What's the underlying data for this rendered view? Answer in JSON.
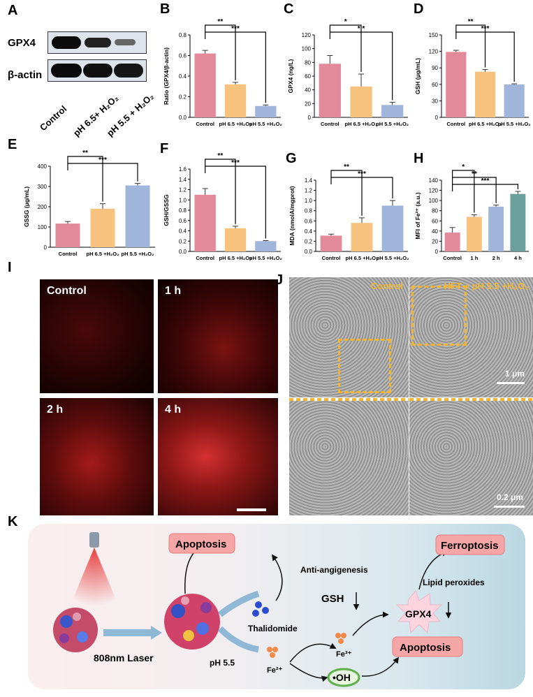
{
  "panel_labels": {
    "A": "A",
    "B": "B",
    "C": "C",
    "D": "D",
    "E": "E",
    "F": "F",
    "G": "G",
    "H": "H",
    "I": "I",
    "J": "J",
    "K": "K"
  },
  "panelA": {
    "bands": [
      "GPX4",
      "β-actin"
    ],
    "lanes": [
      "Control",
      "pH 6.5+ H₂O₂",
      "pH 5.5 + H₂O₂"
    ]
  },
  "chart_data": [
    {
      "id": "B",
      "type": "bar",
      "ylabel": "Ratio (GPX4/β-actin)",
      "categories": [
        "Control",
        "pH 6.5 +H₂O₂",
        "pH 5.5 +H₂O₂"
      ],
      "values": [
        0.62,
        0.32,
        0.11
      ],
      "errors": [
        0.03,
        0.02,
        0.01
      ],
      "ylim": [
        0,
        0.8
      ],
      "yticks": [
        "0.0",
        "0.2",
        "0.4",
        "0.6",
        "0.8"
      ],
      "sig": [
        "**",
        "***"
      ]
    },
    {
      "id": "C",
      "type": "bar",
      "ylabel": "GPX4 (ng/L)",
      "categories": [
        "Control",
        "pH 6.5 +H₂O₂",
        "pH 5.5 +H₂O₂"
      ],
      "values": [
        78,
        45,
        18
      ],
      "errors": [
        12,
        18,
        4
      ],
      "ylim": [
        0,
        120
      ],
      "yticks": [
        "0",
        "20",
        "40",
        "60",
        "80",
        "100",
        "120"
      ],
      "sig": [
        "*",
        "* *"
      ]
    },
    {
      "id": "D",
      "type": "bar",
      "ylabel": "GSH (μg/mL)",
      "categories": [
        "Control",
        "pH 6.5 +H₂O₂",
        "pH 5.5 +H₂O₂"
      ],
      "values": [
        119,
        83,
        60
      ],
      "errors": [
        3,
        4,
        1
      ],
      "ylim": [
        0,
        150
      ],
      "yticks": [
        "0",
        "30",
        "60",
        "90",
        "120",
        "150"
      ],
      "sig": [
        "**",
        "***"
      ]
    },
    {
      "id": "E",
      "type": "bar",
      "ylabel": "GSSG (μg/mL)",
      "categories": [
        "Control",
        "pH 6.5 +H₂O₂",
        "pH 5.5 +H₂O₂"
      ],
      "values": [
        117,
        190,
        305
      ],
      "errors": [
        10,
        25,
        10
      ],
      "ylim": [
        0,
        400
      ],
      "yticks": [
        "0",
        "100",
        "200",
        "300",
        "400"
      ],
      "sig": [
        "**",
        "***"
      ]
    },
    {
      "id": "F",
      "type": "bar",
      "ylabel": "GSH/GSSG",
      "categories": [
        "Control",
        "pH 6.5 +H₂O₂",
        "pH 5.5 +H₂O₂"
      ],
      "values": [
        1.1,
        0.45,
        0.2
      ],
      "errors": [
        0.12,
        0.04,
        0.01
      ],
      "ylim": [
        0,
        1.6
      ],
      "yticks": [
        "0.0",
        "0.2",
        "0.4",
        "0.6",
        "0.8",
        "1.0",
        "1.2",
        "1.4",
        "1.6"
      ],
      "sig": [
        "**",
        "***"
      ]
    },
    {
      "id": "G",
      "type": "bar",
      "ylabel": "MDA (nmolA/mgprot)",
      "categories": [
        "Control",
        "pH 6.5 +H₂O₂",
        "pH 5.5 +H₂O₂"
      ],
      "values": [
        0.31,
        0.56,
        0.9
      ],
      "errors": [
        0.03,
        0.1,
        0.1
      ],
      "ylim": [
        0,
        1.4
      ],
      "yticks": [
        "0.0",
        "0.2",
        "0.4",
        "0.6",
        "0.8",
        "1.0",
        "1.2",
        "1.4"
      ],
      "sig": [
        "**",
        "***"
      ]
    },
    {
      "id": "H",
      "type": "bar",
      "ylabel": "MFI of Fe²⁺ (a.u.)",
      "categories": [
        "Control",
        "1 h",
        "2 h",
        "4 h"
      ],
      "values": [
        37,
        68,
        88,
        113
      ],
      "errors": [
        10,
        4,
        3,
        5
      ],
      "ylim": [
        0,
        140
      ],
      "yticks": [
        "0",
        "20",
        "40",
        "60",
        "80",
        "100",
        "120",
        "140"
      ],
      "sig": [
        "*",
        "**",
        "***"
      ]
    }
  ],
  "panelI": {
    "labels": [
      "Control",
      "1 h",
      "2 h",
      "4 h"
    ]
  },
  "panelJ": {
    "labels": [
      "Control",
      "HFT + pH 5.5 +H₂O₂"
    ],
    "scalebars": [
      "1 μm",
      "0.2 μm"
    ]
  },
  "panelK": {
    "laser": "808nm Laser",
    "apoptosis_top": "Apoptosis",
    "anti_angio": "Anti-angigenesis",
    "thalidomide": "Thalidomide",
    "ph": "pH 5.5",
    "fe2": "Fe²⁺",
    "fe3": "Fe³⁺",
    "oh": "•OH",
    "gsh": "GSH",
    "gpx4": "GPX4",
    "lipid": "Lipid peroxides",
    "ferroptosis": "Ferroptosis",
    "apoptosis_right": "Apoptosis"
  },
  "colors": {
    "pink": "#e2899a",
    "orange": "#f6c27e",
    "blue": "#9fb5d9",
    "teal": "#6b9f9b",
    "yellow": "#f4c04a",
    "red": "#e84a4a"
  }
}
